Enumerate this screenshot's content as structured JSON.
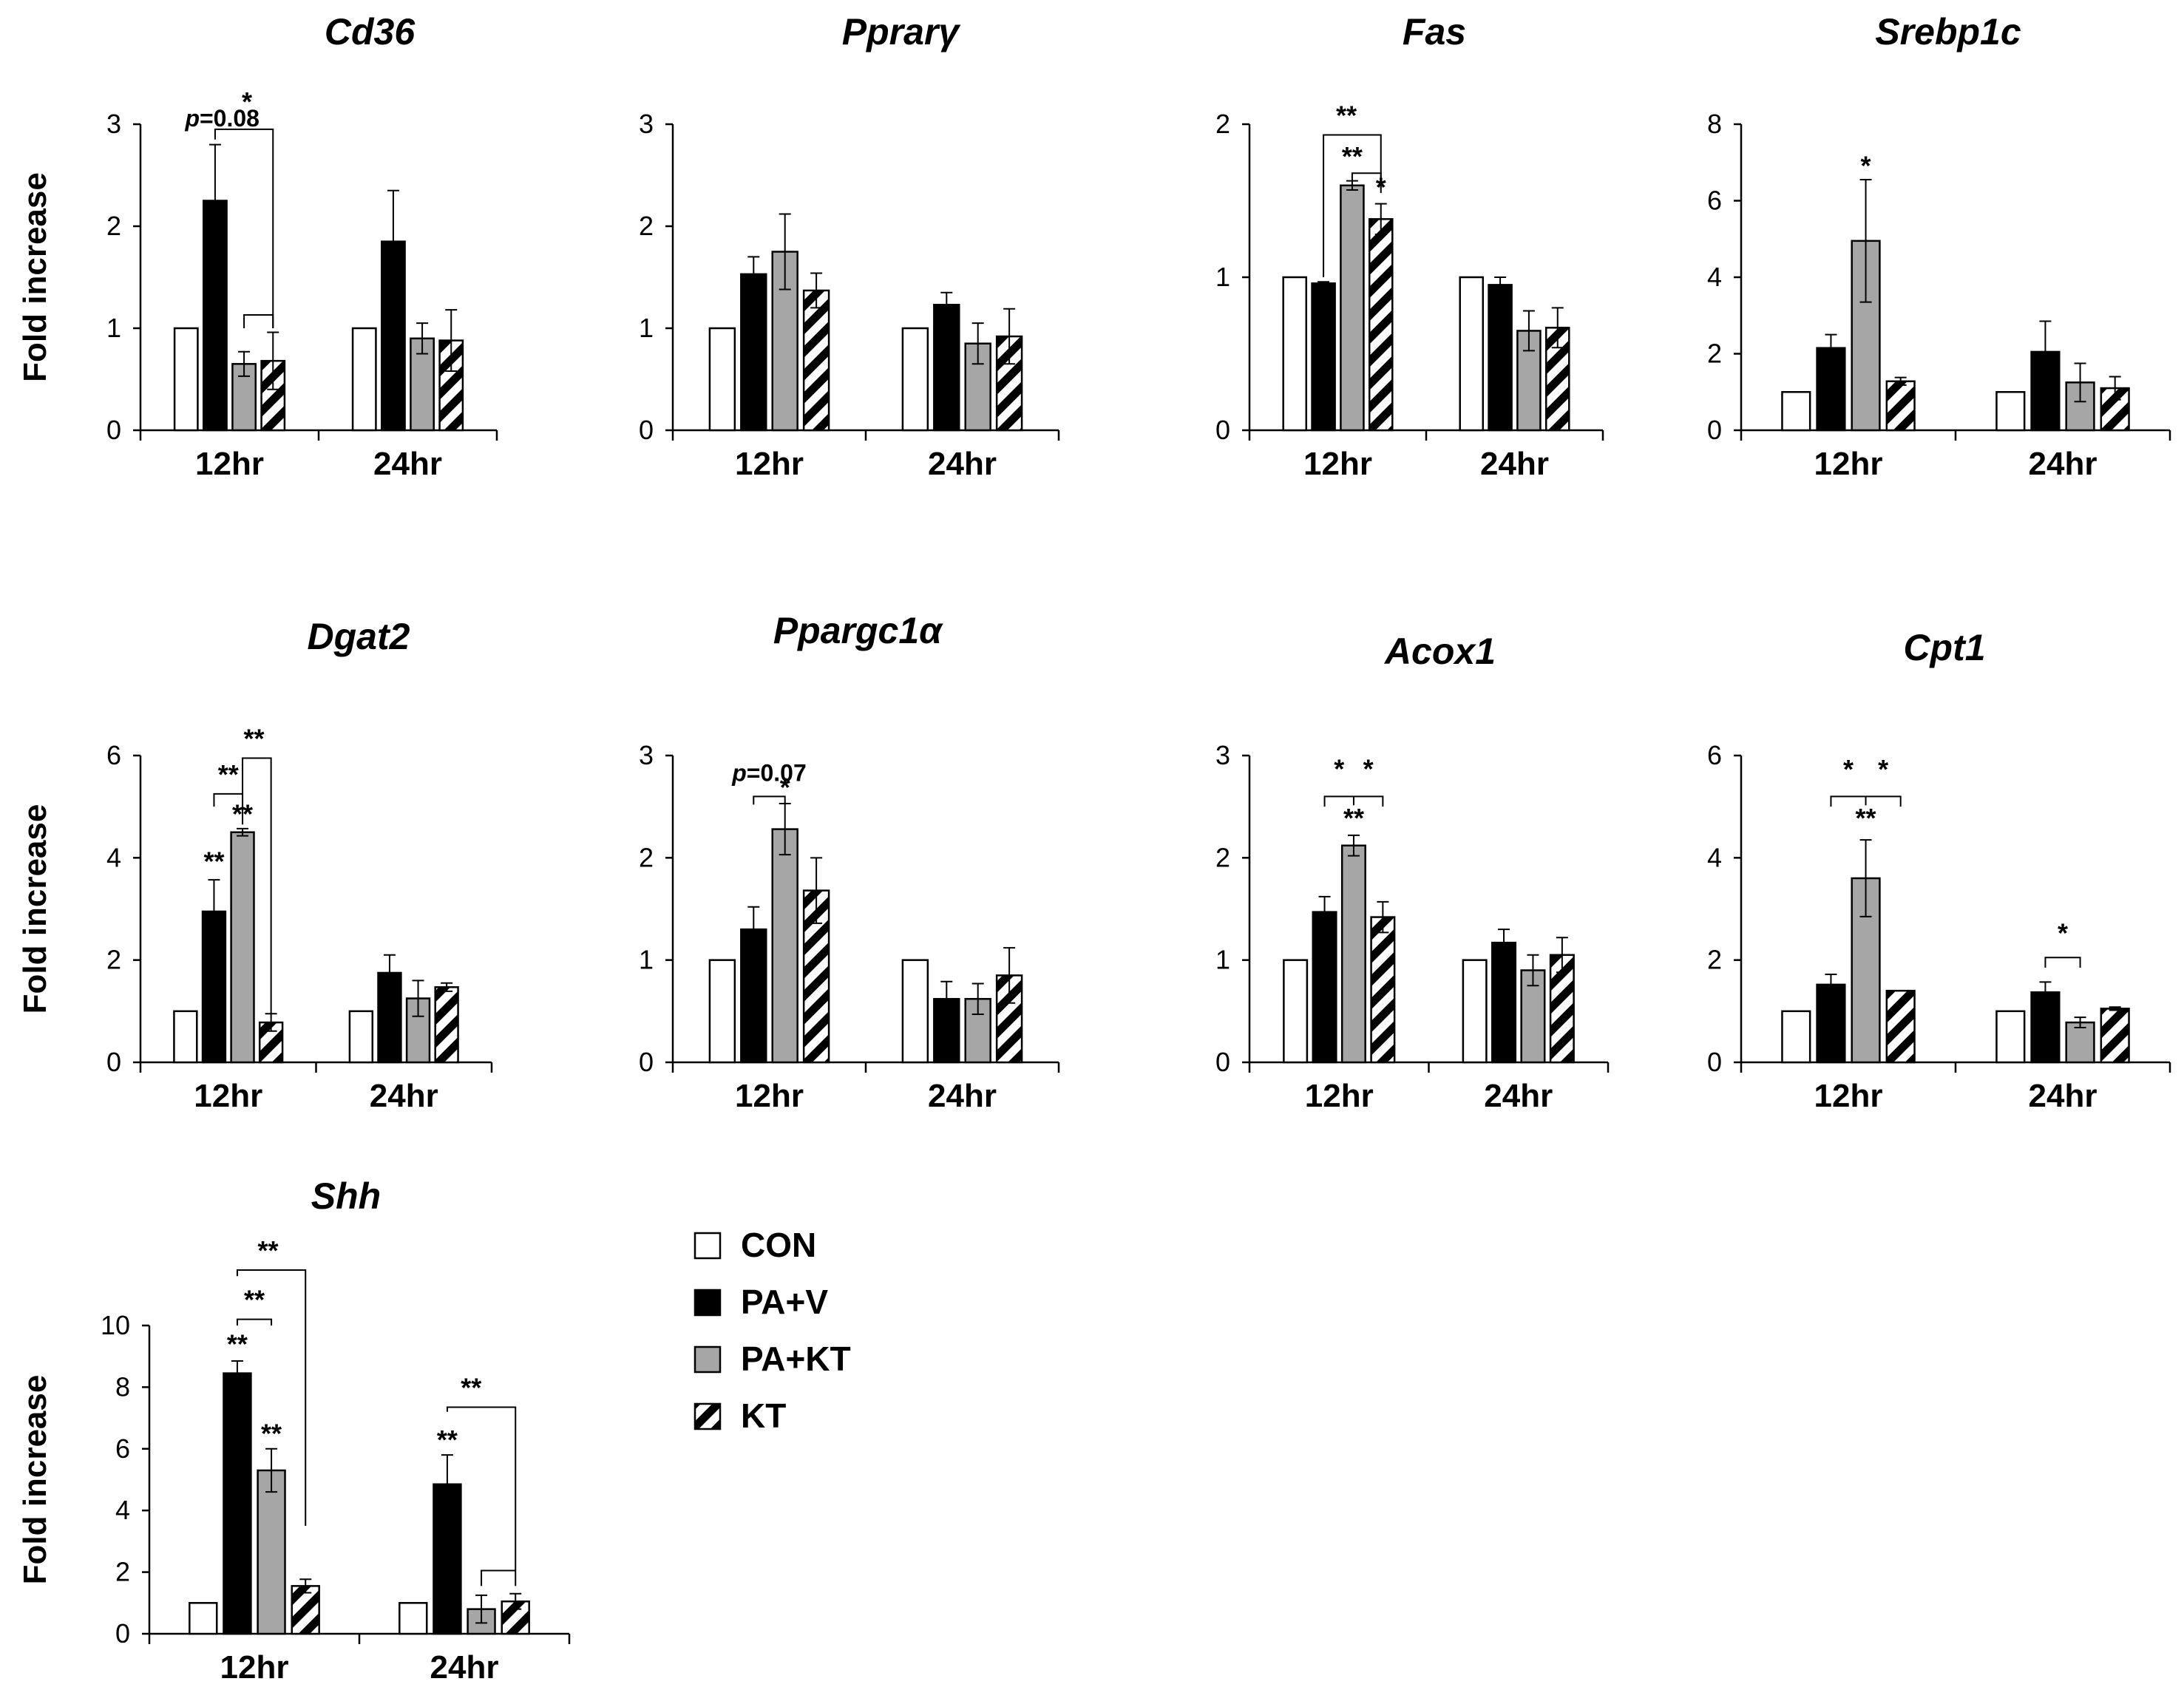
{
  "colors": {
    "CON": "#ffffff",
    "PA+V": "#000000",
    "PA+KT": "#a6a6a6",
    "KT": "hatch"
  },
  "legend": {
    "items": [
      {
        "label": "CON",
        "fill": "#ffffff"
      },
      {
        "label": "PA+V",
        "fill": "#000000"
      },
      {
        "label": "PA+KT",
        "fill": "#a6a6a6"
      },
      {
        "label": "KT",
        "fill": "hatch"
      }
    ]
  },
  "chart_data": [
    {
      "type": "bar",
      "title": "Cd36",
      "ylabel": "Fold increase",
      "ylim": [
        0,
        3
      ],
      "yticks": [
        0,
        1,
        2,
        3
      ],
      "grid": false,
      "categories": [
        "12hr",
        "24hr"
      ],
      "series": [
        {
          "name": "CON",
          "values": [
            1.0,
            1.0
          ],
          "errors": [
            0.0,
            0.0
          ]
        },
        {
          "name": "PA+V",
          "values": [
            2.25,
            1.85
          ],
          "errors": [
            0.55,
            0.5
          ]
        },
        {
          "name": "PA+KT",
          "values": [
            0.65,
            0.9
          ],
          "errors": [
            0.12,
            0.15
          ]
        },
        {
          "name": "KT",
          "values": [
            0.68,
            0.88
          ],
          "errors": [
            0.28,
            0.3
          ]
        }
      ],
      "annotations": [
        "*",
        "p=0.08"
      ]
    },
    {
      "type": "bar",
      "title": "Pprarγ",
      "ylabel": "",
      "ylim": [
        0,
        3
      ],
      "yticks": [
        0,
        1,
        2,
        3
      ],
      "grid": false,
      "categories": [
        "12hr",
        "24hr"
      ],
      "series": [
        {
          "name": "CON",
          "values": [
            1.0,
            1.0
          ],
          "errors": [
            0.0,
            0.0
          ]
        },
        {
          "name": "PA+V",
          "values": [
            1.53,
            1.23
          ],
          "errors": [
            0.17,
            0.12
          ]
        },
        {
          "name": "PA+KT",
          "values": [
            1.75,
            0.85
          ],
          "errors": [
            0.37,
            0.2
          ]
        },
        {
          "name": "KT",
          "values": [
            1.37,
            0.92
          ],
          "errors": [
            0.17,
            0.27
          ]
        }
      ],
      "annotations": []
    },
    {
      "type": "bar",
      "title": "Fas",
      "ylabel": "",
      "ylim": [
        0,
        2
      ],
      "yticks": [
        0,
        1,
        2
      ],
      "grid": false,
      "categories": [
        "12hr",
        "24hr"
      ],
      "series": [
        {
          "name": "CON",
          "values": [
            1.0,
            1.0
          ],
          "errors": [
            0.0,
            0.0
          ]
        },
        {
          "name": "PA+V",
          "values": [
            0.96,
            0.95
          ],
          "errors": [
            0.01,
            0.05
          ]
        },
        {
          "name": "PA+KT",
          "values": [
            1.6,
            0.65
          ],
          "errors": [
            0.03,
            0.13
          ]
        },
        {
          "name": "KT",
          "values": [
            1.38,
            0.67
          ],
          "errors": [
            0.1,
            0.13
          ]
        }
      ],
      "annotations": [
        "**",
        "**",
        "*"
      ]
    },
    {
      "type": "bar",
      "title": "Srebp1c",
      "ylabel": "",
      "ylim": [
        0,
        8
      ],
      "yticks": [
        0,
        2,
        4,
        6,
        8
      ],
      "grid": false,
      "categories": [
        "12hr",
        "24hr"
      ],
      "series": [
        {
          "name": "CON",
          "values": [
            1.0,
            1.0
          ],
          "errors": [
            0.0,
            0.0
          ]
        },
        {
          "name": "PA+V",
          "values": [
            2.15,
            2.05
          ],
          "errors": [
            0.35,
            0.8
          ]
        },
        {
          "name": "PA+KT",
          "values": [
            4.95,
            1.25
          ],
          "errors": [
            1.6,
            0.5
          ]
        },
        {
          "name": "KT",
          "values": [
            1.28,
            1.1
          ],
          "errors": [
            0.1,
            0.3
          ]
        }
      ],
      "annotations": [
        "*"
      ]
    },
    {
      "type": "bar",
      "title": "Dgat2",
      "ylabel": "Fold increase",
      "ylim": [
        0,
        6
      ],
      "yticks": [
        0,
        2,
        4,
        6
      ],
      "grid": false,
      "categories": [
        "12hr",
        "24hr"
      ],
      "series": [
        {
          "name": "CON",
          "values": [
            1.0,
            1.0
          ],
          "errors": [
            0.0,
            0.0
          ]
        },
        {
          "name": "PA+V",
          "values": [
            2.95,
            1.75
          ],
          "errors": [
            0.62,
            0.35
          ]
        },
        {
          "name": "PA+KT",
          "values": [
            4.5,
            1.25
          ],
          "errors": [
            0.07,
            0.35
          ]
        },
        {
          "name": "KT",
          "values": [
            0.78,
            1.47
          ],
          "errors": [
            0.17,
            0.08
          ]
        }
      ],
      "annotations": [
        "**",
        "**",
        "**",
        "**"
      ]
    },
    {
      "type": "bar",
      "title": "Ppargc1α",
      "ylabel": "",
      "ylim": [
        0,
        3
      ],
      "yticks": [
        0,
        1,
        2,
        3
      ],
      "grid": false,
      "categories": [
        "12hr",
        "24hr"
      ],
      "series": [
        {
          "name": "CON",
          "values": [
            1.0,
            1.0
          ],
          "errors": [
            0.0,
            0.0
          ]
        },
        {
          "name": "PA+V",
          "values": [
            1.3,
            0.62
          ],
          "errors": [
            0.22,
            0.17
          ]
        },
        {
          "name": "PA+KT",
          "values": [
            2.28,
            0.62
          ],
          "errors": [
            0.25,
            0.15
          ]
        },
        {
          "name": "KT",
          "values": [
            1.68,
            0.85
          ],
          "errors": [
            0.32,
            0.27
          ]
        }
      ],
      "annotations": [
        "*",
        "p=0.07"
      ]
    },
    {
      "type": "bar",
      "title": "Acox1",
      "ylabel": "",
      "ylim": [
        0,
        3
      ],
      "yticks": [
        0,
        1,
        2,
        3
      ],
      "grid": false,
      "categories": [
        "12hr",
        "24hr"
      ],
      "series": [
        {
          "name": "CON",
          "values": [
            1.0,
            1.0
          ],
          "errors": [
            0.0,
            0.0
          ]
        },
        {
          "name": "PA+V",
          "values": [
            1.47,
            1.17
          ],
          "errors": [
            0.15,
            0.13
          ]
        },
        {
          "name": "PA+KT",
          "values": [
            2.12,
            0.9
          ],
          "errors": [
            0.1,
            0.15
          ]
        },
        {
          "name": "KT",
          "values": [
            1.42,
            1.05
          ],
          "errors": [
            0.15,
            0.17
          ]
        }
      ],
      "annotations": [
        "*",
        "*",
        "**"
      ]
    },
    {
      "type": "bar",
      "title": "Cpt1",
      "ylabel": "",
      "ylim": [
        0,
        6
      ],
      "yticks": [
        0,
        2,
        4,
        6
      ],
      "grid": false,
      "categories": [
        "12hr",
        "24hr"
      ],
      "series": [
        {
          "name": "CON",
          "values": [
            1.0,
            1.0
          ],
          "errors": [
            0.0,
            0.0
          ]
        },
        {
          "name": "PA+V",
          "values": [
            1.52,
            1.37
          ],
          "errors": [
            0.2,
            0.2
          ]
        },
        {
          "name": "PA+KT",
          "values": [
            3.6,
            0.78
          ],
          "errors": [
            0.75,
            0.1
          ]
        },
        {
          "name": "KT",
          "values": [
            1.4,
            1.05
          ],
          "errors": [
            0.0,
            0.03
          ]
        }
      ],
      "annotations": [
        "*",
        "*",
        "**",
        "*"
      ]
    },
    {
      "type": "bar",
      "title": "Shh",
      "ylabel": "Fold increase",
      "ylim": [
        0,
        10
      ],
      "yticks": [
        0,
        2,
        4,
        6,
        8,
        10
      ],
      "grid": false,
      "categories": [
        "12hr",
        "24hr"
      ],
      "series": [
        {
          "name": "CON",
          "values": [
            1.0,
            1.0
          ],
          "errors": [
            0.0,
            0.0
          ]
        },
        {
          "name": "PA+V",
          "values": [
            8.45,
            4.85
          ],
          "errors": [
            0.4,
            0.95
          ]
        },
        {
          "name": "PA+KT",
          "values": [
            5.3,
            0.8
          ],
          "errors": [
            0.7,
            0.45
          ]
        },
        {
          "name": "KT",
          "values": [
            1.55,
            1.05
          ],
          "errors": [
            0.22,
            0.25
          ]
        }
      ],
      "annotations": [
        "**",
        "**",
        "**",
        "**",
        "**",
        "**"
      ]
    }
  ]
}
